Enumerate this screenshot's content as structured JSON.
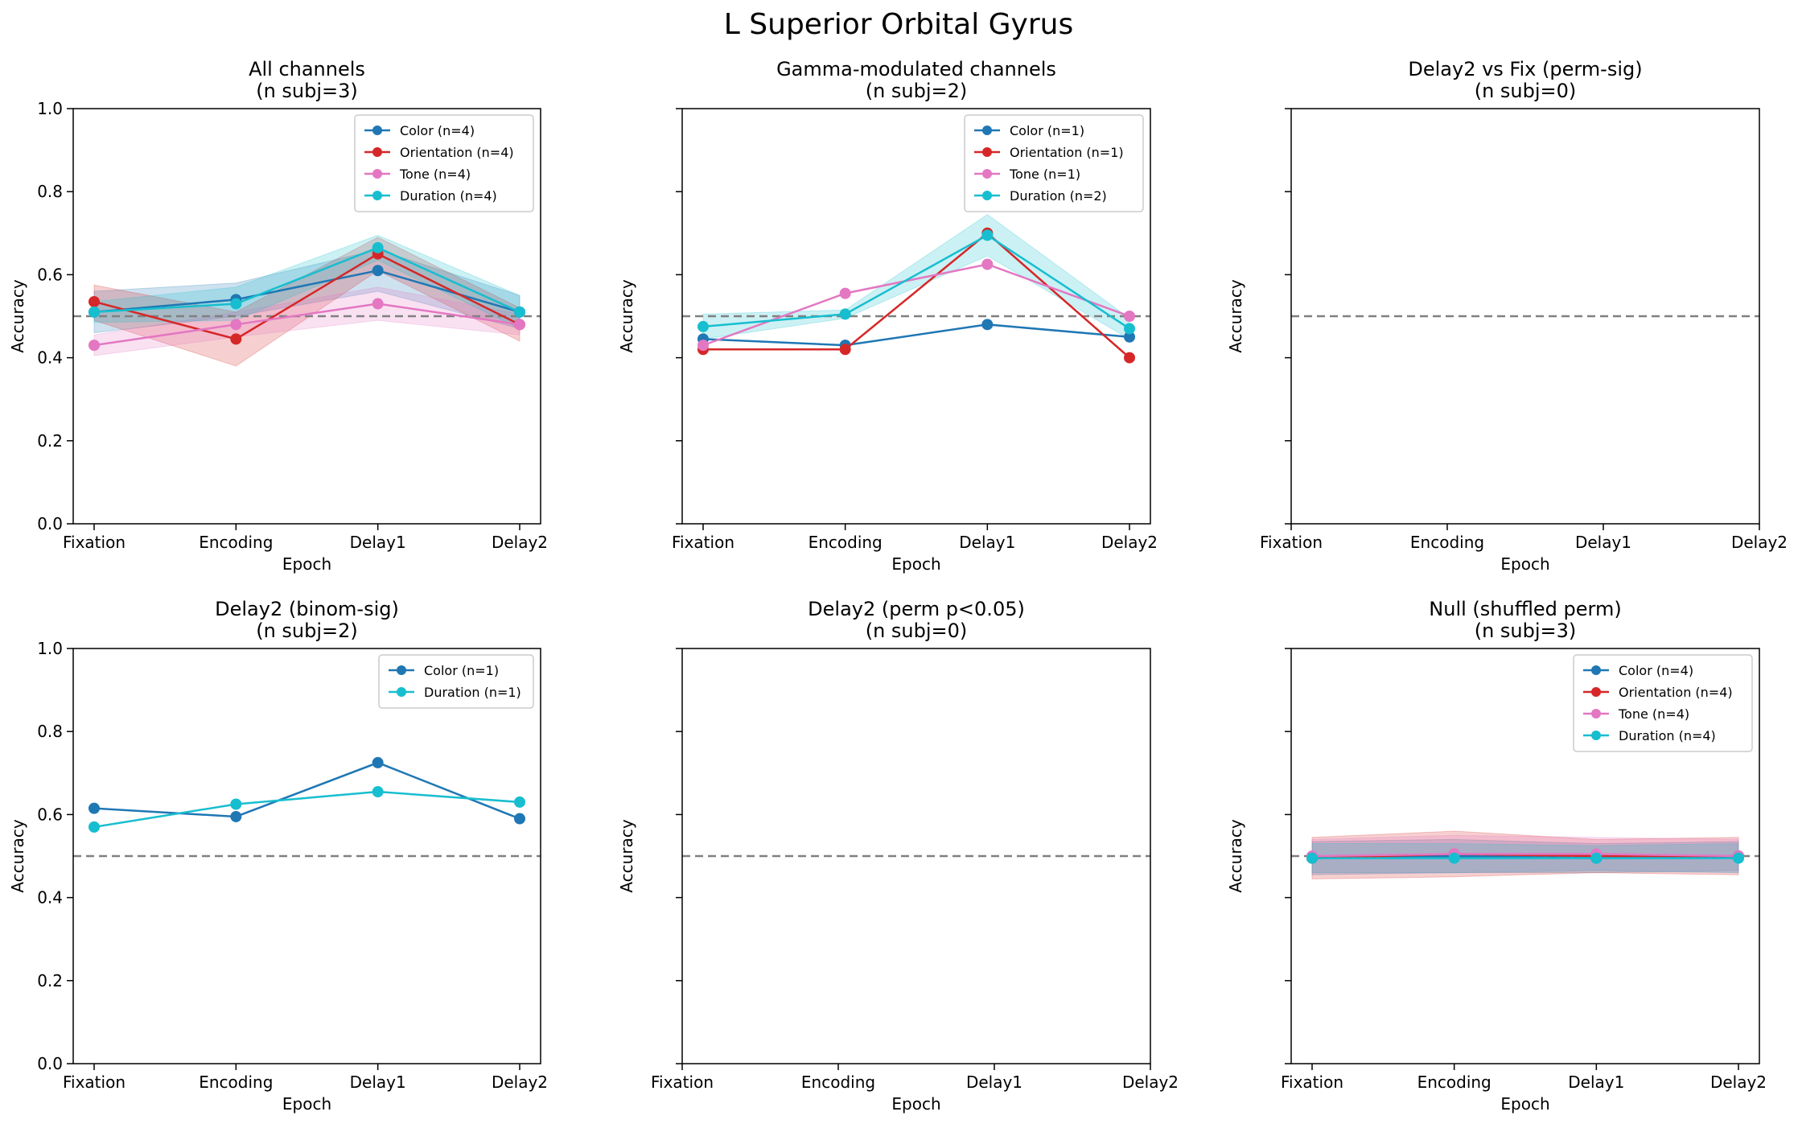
{
  "figure": {
    "suptitle": "L Superior Orbital Gyrus"
  },
  "colors": {
    "Color": "#1f77b4",
    "Orientation": "#d62728",
    "Tone": "#e377c2",
    "Duration": "#17becf",
    "chance_line": "#808080"
  },
  "chart_data": [
    {
      "type": "line",
      "title": "All channels",
      "subtitle": "(n subj=3)",
      "xlabel": "Epoch",
      "ylabel": "Accuracy",
      "categories": [
        "Fixation",
        "Encoding",
        "Delay1",
        "Delay2"
      ],
      "ylim": [
        0,
        1
      ],
      "yticks": [
        "0.0",
        "0.2",
        "0.4",
        "0.6",
        "0.8",
        "1.0"
      ],
      "show_yticklabels": true,
      "chance": 0.5,
      "legend": "top-right",
      "series": [
        {
          "name": "Color (n=4)",
          "key": "Color",
          "values": [
            0.51,
            0.54,
            0.61,
            0.51
          ],
          "lower": [
            0.46,
            0.5,
            0.56,
            0.47
          ],
          "upper": [
            0.56,
            0.58,
            0.66,
            0.55
          ]
        },
        {
          "name": "Orientation (n=4)",
          "key": "Orientation",
          "values": [
            0.535,
            0.445,
            0.65,
            0.48
          ],
          "lower": [
            0.49,
            0.38,
            0.61,
            0.44
          ],
          "upper": [
            0.575,
            0.51,
            0.69,
            0.52
          ]
        },
        {
          "name": "Tone (n=4)",
          "key": "Tone",
          "values": [
            0.43,
            0.48,
            0.53,
            0.48
          ],
          "lower": [
            0.405,
            0.45,
            0.49,
            0.455
          ],
          "upper": [
            0.455,
            0.51,
            0.57,
            0.505
          ]
        },
        {
          "name": "Duration (n=4)",
          "key": "Duration",
          "values": [
            0.51,
            0.53,
            0.665,
            0.51
          ],
          "lower": [
            0.485,
            0.49,
            0.635,
            0.47
          ],
          "upper": [
            0.535,
            0.57,
            0.695,
            0.55
          ]
        }
      ]
    },
    {
      "type": "line",
      "title": "Gamma-modulated channels",
      "subtitle": "(n subj=2)",
      "xlabel": "Epoch",
      "ylabel": "Accuracy",
      "categories": [
        "Fixation",
        "Encoding",
        "Delay1",
        "Delay2"
      ],
      "ylim": [
        0,
        1
      ],
      "show_yticklabels": false,
      "chance": 0.5,
      "legend": "top-right",
      "series": [
        {
          "name": "Color (n=1)",
          "key": "Color",
          "values": [
            0.445,
            0.43,
            0.48,
            0.45
          ]
        },
        {
          "name": "Orientation (n=1)",
          "key": "Orientation",
          "values": [
            0.42,
            0.42,
            0.7,
            0.4
          ]
        },
        {
          "name": "Tone (n=1)",
          "key": "Tone",
          "values": [
            0.43,
            0.555,
            0.625,
            0.5
          ]
        },
        {
          "name": "Duration (n=2)",
          "key": "Duration",
          "values": [
            0.475,
            0.505,
            0.695,
            0.47
          ],
          "lower": [
            0.445,
            0.495,
            0.645,
            0.445
          ],
          "upper": [
            0.505,
            0.515,
            0.745,
            0.495
          ]
        }
      ]
    },
    {
      "type": "line",
      "title": "Delay2 vs Fix (perm-sig)",
      "subtitle": "(n subj=0)",
      "xlabel": "Epoch",
      "ylabel": "Accuracy",
      "categories": [
        "Fixation",
        "Encoding",
        "Delay1",
        "Delay2"
      ],
      "ylim": [
        0,
        1
      ],
      "show_yticklabels": false,
      "chance": 0.5,
      "series": []
    },
    {
      "type": "line",
      "title": "Delay2 (binom-sig)",
      "subtitle": "(n subj=2)",
      "xlabel": "Epoch",
      "ylabel": "Accuracy",
      "categories": [
        "Fixation",
        "Encoding",
        "Delay1",
        "Delay2"
      ],
      "ylim": [
        0,
        1
      ],
      "yticks": [
        "0.0",
        "0.2",
        "0.4",
        "0.6",
        "0.8",
        "1.0"
      ],
      "show_yticklabels": true,
      "chance": 0.5,
      "legend": "top-right",
      "series": [
        {
          "name": "Color (n=1)",
          "key": "Color",
          "values": [
            0.615,
            0.595,
            0.725,
            0.59
          ]
        },
        {
          "name": "Duration (n=1)",
          "key": "Duration",
          "values": [
            0.57,
            0.625,
            0.655,
            0.63
          ]
        }
      ]
    },
    {
      "type": "line",
      "title": "Delay2 (perm p<0.05)",
      "subtitle": "(n subj=0)",
      "xlabel": "Epoch",
      "ylabel": "Accuracy",
      "categories": [
        "Fixation",
        "Encoding",
        "Delay1",
        "Delay2"
      ],
      "ylim": [
        0,
        1
      ],
      "show_yticklabels": false,
      "chance": 0.5,
      "series": []
    },
    {
      "type": "line",
      "title": "Null (shuffled perm)",
      "subtitle": "(n subj=3)",
      "xlabel": "Epoch",
      "ylabel": "Accuracy",
      "categories": [
        "Fixation",
        "Encoding",
        "Delay1",
        "Delay2"
      ],
      "ylim": [
        0,
        1
      ],
      "show_yticklabels": false,
      "chance": 0.5,
      "legend": "top-right",
      "series": [
        {
          "name": "Color (n=4)",
          "key": "Color",
          "values": [
            0.495,
            0.5,
            0.495,
            0.5
          ],
          "lower": [
            0.455,
            0.46,
            0.46,
            0.465
          ],
          "upper": [
            0.535,
            0.54,
            0.53,
            0.535
          ]
        },
        {
          "name": "Orientation (n=4)",
          "key": "Orientation",
          "values": [
            0.495,
            0.505,
            0.5,
            0.5
          ],
          "lower": [
            0.445,
            0.45,
            0.46,
            0.455
          ],
          "upper": [
            0.545,
            0.56,
            0.54,
            0.545
          ]
        },
        {
          "name": "Tone (n=4)",
          "key": "Tone",
          "values": [
            0.5,
            0.505,
            0.505,
            0.5
          ],
          "lower": [
            0.46,
            0.46,
            0.465,
            0.46
          ],
          "upper": [
            0.54,
            0.55,
            0.545,
            0.54
          ]
        },
        {
          "name": "Duration (n=4)",
          "key": "Duration",
          "values": [
            0.495,
            0.495,
            0.495,
            0.495
          ],
          "lower": [
            0.46,
            0.46,
            0.465,
            0.46
          ],
          "upper": [
            0.53,
            0.53,
            0.525,
            0.53
          ]
        }
      ]
    }
  ]
}
